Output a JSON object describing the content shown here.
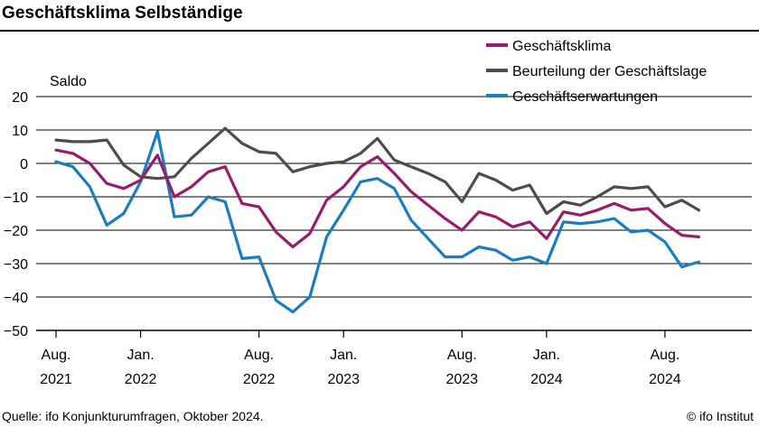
{
  "header": {
    "title": "Geschäftsklima Selbständige"
  },
  "footer": {
    "source": "Quelle: ifo Konjunkturumfragen, Oktober 2024.",
    "copyright": "© ifo Institut"
  },
  "chart_data": {
    "type": "line",
    "title": "Geschäftsklima Selbständige",
    "ylabel": "Saldo",
    "xlabel": "",
    "ylim": [
      -50,
      20
    ],
    "yticks": [
      20,
      10,
      0,
      -10,
      -20,
      -30,
      -40,
      -50
    ],
    "grid": true,
    "legend_position": "top-right",
    "x_ticks": [
      {
        "idx": 0,
        "month": "Aug.",
        "year": "2021"
      },
      {
        "idx": 5,
        "month": "Jan.",
        "year": "2022"
      },
      {
        "idx": 12,
        "month": "Aug.",
        "year": "2022"
      },
      {
        "idx": 17,
        "month": "Jan.",
        "year": "2023"
      },
      {
        "idx": 24,
        "month": "Aug.",
        "year": "2023"
      },
      {
        "idx": 29,
        "month": "Jan.",
        "year": "2024"
      },
      {
        "idx": 36,
        "month": "Aug.",
        "year": "2024"
      }
    ],
    "x": [
      "2021-08",
      "2021-09",
      "2021-10",
      "2021-11",
      "2021-12",
      "2022-01",
      "2022-02",
      "2022-03",
      "2022-04",
      "2022-05",
      "2022-06",
      "2022-07",
      "2022-08",
      "2022-09",
      "2022-10",
      "2022-11",
      "2022-12",
      "2023-01",
      "2023-02",
      "2023-03",
      "2023-04",
      "2023-05",
      "2023-06",
      "2023-07",
      "2023-08",
      "2023-09",
      "2023-10",
      "2023-11",
      "2023-12",
      "2024-01",
      "2024-02",
      "2024-03",
      "2024-04",
      "2024-05",
      "2024-06",
      "2024-07",
      "2024-08",
      "2024-09",
      "2024-10"
    ],
    "series": [
      {
        "name": "Geschäftsklima",
        "color": "#9b1b6b",
        "values": [
          4,
          3,
          0,
          -6,
          -7.5,
          -5,
          2.5,
          -10,
          -7,
          -2.5,
          -1,
          -12,
          -13,
          -20.5,
          -25,
          -21,
          -11,
          -7,
          -1,
          2,
          -3,
          -8.5,
          -12.5,
          -16.5,
          -20,
          -14.5,
          -16,
          -19,
          -17.5,
          -22.5,
          -14.5,
          -15.5,
          -14,
          -12,
          -14,
          -13.5,
          -18,
          -21.5,
          -22
        ]
      },
      {
        "name": "Beurteilung der Geschäftslage",
        "color": "#4d4d4d",
        "values": [
          7,
          6.5,
          6.5,
          7,
          -0.5,
          -4,
          -4.5,
          -4,
          1.5,
          6,
          10.5,
          6,
          3.5,
          3,
          -2.5,
          -1,
          0,
          0.5,
          3,
          7.5,
          1,
          -1,
          -3,
          -5.5,
          -11.5,
          -3,
          -5,
          -8,
          -6.5,
          -15,
          -11.5,
          -12.5,
          -10,
          -7,
          -7.5,
          -7,
          -13,
          -11,
          -14
        ]
      },
      {
        "name": "Geschäftserwartungen",
        "color": "#1a7dbf",
        "values": [
          0.5,
          -1,
          -7,
          -18.5,
          -15,
          -5.5,
          9.5,
          -16,
          -15.5,
          -10,
          -11.5,
          -28.5,
          -28,
          -41,
          -44.5,
          -40,
          -22,
          -14,
          -5.5,
          -4.5,
          -7.5,
          -17,
          -22.5,
          -28,
          -28,
          -25,
          -26,
          -29,
          -28,
          -30,
          -17.5,
          -18,
          -17.5,
          -16.5,
          -20.5,
          -20,
          -23.5,
          -31,
          -29.5
        ]
      }
    ]
  }
}
